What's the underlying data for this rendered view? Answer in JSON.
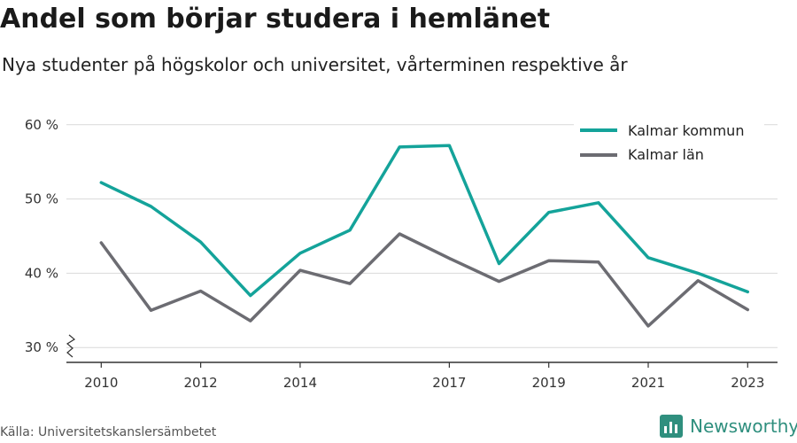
{
  "header": {
    "title": "Andel som börjar studera i hemlänet",
    "subtitle": "Nya studenter på högskolor och universitet, vårterminen respektive år"
  },
  "footer": {
    "source": "Källa: Universitetskanslersämbetet",
    "brand": "Newsworthy",
    "brand_color": "#2f8f7e"
  },
  "chart_data": {
    "type": "line",
    "x": [
      2010,
      2011,
      2012,
      2013,
      2014,
      2015,
      2016,
      2017,
      2018,
      2019,
      2020,
      2021,
      2022,
      2023
    ],
    "x_tick_labels": [
      "2010",
      "2012",
      "2014",
      "2017",
      "2019",
      "2021",
      "2023"
    ],
    "y_tick_labels": [
      "30 %",
      "40 %",
      "50 %",
      "60 %"
    ],
    "y_ticks": [
      30,
      40,
      50,
      60
    ],
    "ylim": [
      28,
      62
    ],
    "xlim": [
      2009.3,
      2023.6
    ],
    "y_axis_break": true,
    "grid": true,
    "legend_position": "top-right",
    "series": [
      {
        "name": "Kalmar kommun",
        "color": "#14a39a",
        "values": [
          52.2,
          49.0,
          44.2,
          37.0,
          42.7,
          45.8,
          57.0,
          57.2,
          41.3,
          48.2,
          49.5,
          42.1,
          40.0,
          37.5
        ]
      },
      {
        "name": "Kalmar län",
        "color": "#6c6c72",
        "values": [
          44.1,
          35.0,
          37.6,
          33.6,
          40.4,
          38.6,
          45.3,
          42.0,
          38.9,
          41.7,
          41.5,
          32.9,
          39.0,
          35.1
        ]
      }
    ]
  }
}
